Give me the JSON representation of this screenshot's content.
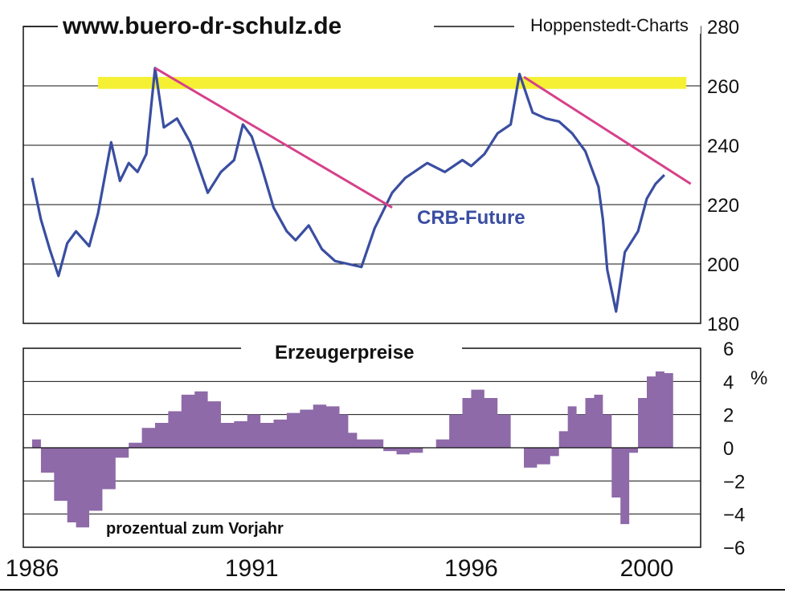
{
  "header": {
    "website": "www.buero-dr-schulz.de",
    "source": "Hoppenstedt-Charts"
  },
  "colors": {
    "crb_line": "#3a4ea1",
    "trendline": "#d6418a",
    "resistance_band": "#f5f033",
    "ppi_fill": "#8e6aa9"
  },
  "chart_data": [
    {
      "type": "line",
      "annotation": "CRB-Future",
      "x_range": [
        1986,
        2001.2
      ],
      "ylim": [
        180,
        280
      ],
      "y_ticks": [
        "280",
        "260",
        "240",
        "220",
        "200",
        "180"
      ],
      "grid": true,
      "series": [
        {
          "name": "CRB-Future",
          "x": [
            1986.0,
            1986.2,
            1986.4,
            1986.6,
            1986.8,
            1987.0,
            1987.3,
            1987.5,
            1987.8,
            1988.0,
            1988.2,
            1988.4,
            1988.6,
            1988.8,
            1989.0,
            1989.3,
            1989.6,
            1990.0,
            1990.3,
            1990.6,
            1990.8,
            1991.0,
            1991.2,
            1991.5,
            1991.8,
            1992.0,
            1992.3,
            1992.6,
            1992.9,
            1993.2,
            1993.5,
            1993.8,
            1994.0,
            1994.2,
            1994.5,
            1994.8,
            1995.0,
            1995.4,
            1995.8,
            1996.0,
            1996.3,
            1996.6,
            1996.9,
            1997.1,
            1997.4,
            1997.7,
            1998.0,
            1998.3,
            1998.6,
            1998.9,
            1999.0,
            1999.1,
            1999.3,
            1999.5,
            1999.8,
            2000.0,
            2000.2,
            2000.4
          ],
          "y": [
            229,
            215,
            205,
            196,
            207,
            211,
            206,
            217,
            241,
            228,
            234,
            231,
            237,
            266,
            246,
            249,
            241,
            224,
            231,
            235,
            247,
            243,
            234,
            219,
            211,
            208,
            213,
            205,
            201,
            200,
            199,
            212,
            218,
            224,
            229,
            232,
            234,
            231,
            235,
            233,
            237,
            244,
            247,
            264,
            251,
            249,
            248,
            244,
            238,
            226,
            215,
            198,
            184,
            204,
            211,
            222,
            227,
            230
          ]
        }
      ],
      "trendlines": [
        {
          "x": [
            1988.8,
            1994.2
          ],
          "y": [
            266,
            219
          ]
        },
        {
          "x": [
            1997.2,
            2001.0
          ],
          "y": [
            263,
            227
          ]
        }
      ],
      "band": {
        "x": [
          1987.5,
          2000.9
        ],
        "y": [
          259,
          263
        ]
      }
    },
    {
      "type": "area",
      "title": "Erzeugerpreise",
      "unit": "%",
      "annotation": "prozentual zum Vorjahr",
      "ylim": [
        -6,
        6
      ],
      "y_ticks": [
        "6",
        "4",
        "2",
        "0",
        "-2",
        "-4",
        "-6"
      ],
      "x_ticks": [
        "1986",
        "1991",
        "1996",
        "2000"
      ],
      "grid": true,
      "series": [
        {
          "name": "Erzeugerpreise",
          "x": [
            1986.0,
            1986.2,
            1986.5,
            1986.8,
            1987.0,
            1987.3,
            1987.6,
            1987.9,
            1988.2,
            1988.5,
            1988.8,
            1989.1,
            1989.4,
            1989.7,
            1990.0,
            1990.3,
            1990.6,
            1990.9,
            1991.2,
            1991.5,
            1991.8,
            1992.1,
            1992.4,
            1992.7,
            1993.0,
            1993.2,
            1993.4,
            1993.7,
            1994.0,
            1994.3,
            1994.6,
            1994.9,
            1995.2,
            1995.5,
            1995.8,
            1996.0,
            1996.3,
            1996.6,
            1996.9,
            1997.2,
            1997.5,
            1997.8,
            1998.0,
            1998.2,
            1998.4,
            1998.6,
            1998.8,
            1999.0,
            1999.2,
            1999.4,
            1999.6,
            1999.8,
            2000.0,
            2000.2,
            2000.4
          ],
          "y": [
            0.5,
            -1.5,
            -3.2,
            -4.5,
            -4.8,
            -3.8,
            -2.5,
            -0.6,
            0.3,
            1.2,
            1.5,
            2.2,
            3.2,
            3.4,
            2.8,
            1.5,
            1.6,
            2.0,
            1.5,
            1.7,
            2.1,
            2.3,
            2.6,
            2.5,
            2.0,
            0.9,
            0.5,
            0.5,
            -0.2,
            -0.4,
            -0.3,
            0.0,
            0.5,
            2.0,
            3.0,
            3.5,
            3.0,
            2.0,
            0.0,
            -1.2,
            -1.0,
            -0.5,
            1.0,
            2.5,
            2.0,
            3.0,
            3.2,
            2.0,
            -3.0,
            -4.6,
            -0.3,
            3.0,
            4.3,
            4.6,
            4.5
          ]
        }
      ]
    }
  ]
}
